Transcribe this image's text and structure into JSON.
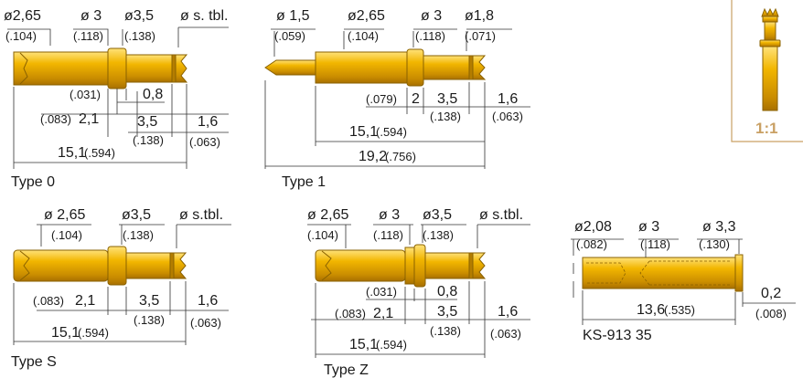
{
  "scale_label": "1:1",
  "colors": {
    "gold": "#e9a800",
    "gold_dark": "#b47d00",
    "gold_light": "#ffd34d",
    "accent": "#c9a064"
  },
  "type0": {
    "title": "Type 0",
    "d1": "ø2,65",
    "d1_in": "(.104)",
    "d2": "ø 3",
    "d2_in": "(.118)",
    "d3": "ø3,5",
    "d3_in": "(.138)",
    "d4": "ø s. tbl.",
    "a_in": "(.031)",
    "a": "0,8",
    "b_in": "(.083)",
    "b": "2,1",
    "c": "3,5",
    "c_in": "(.138)",
    "e": "1,6",
    "e_in": "(.063)",
    "total": "15,1",
    "total_in": "(.594)"
  },
  "type1": {
    "title": "Type 1",
    "d1": "ø 1,5",
    "d1_in": "(.059)",
    "d2": "ø2,65",
    "d2_in": "(.104)",
    "d3": "ø 3",
    "d3_in": "(.118)",
    "d4": "ø1,8",
    "d4_in": "(.071)",
    "a_in": "(.079)",
    "a": "2",
    "b": "3,5",
    "b_in": "(.138)",
    "c": "1,6",
    "c_in": "(.063)",
    "total1": "15,1",
    "total1_in": "(.594)",
    "total2": "19,2",
    "total2_in": "(.756)"
  },
  "typeS": {
    "title": "Type S",
    "d1": "ø 2,65",
    "d1_in": "(.104)",
    "d2": "ø3,5",
    "d2_in": "(.138)",
    "d3": "ø s.tbl.",
    "a_in": "(.083)",
    "a": "2,1",
    "b": "3,5",
    "b_in": "(.138)",
    "c": "1,6",
    "c_in": "(.063)",
    "total": "15,1",
    "total_in": "(.594)"
  },
  "typeZ": {
    "title": "Type Z",
    "d1": "ø 2,65",
    "d1_in": "(.104)",
    "d2": "ø 3",
    "d2_in": "(.118)",
    "d3": "ø3,5",
    "d3_in": "(.138)",
    "d4": "ø s.tbl.",
    "a_in": "(.031)",
    "a": "0,8",
    "b_in": "(.083)",
    "b": "2,1",
    "c": "3,5",
    "c_in": "(.138)",
    "e": "1,6",
    "e_in": "(.063)",
    "total": "15,1",
    "total_in": "(.594)"
  },
  "ks": {
    "title": "KS-913 35",
    "d1": "ø2,08",
    "d1_in": "(.082)",
    "d2": "ø 3",
    "d2_in": "(.118)",
    "d3": "ø 3,3",
    "d3_in": "(.130)",
    "len": "13,6",
    "len_in": "(.535)",
    "rim": "0,2",
    "rim_in": "(.008)"
  }
}
